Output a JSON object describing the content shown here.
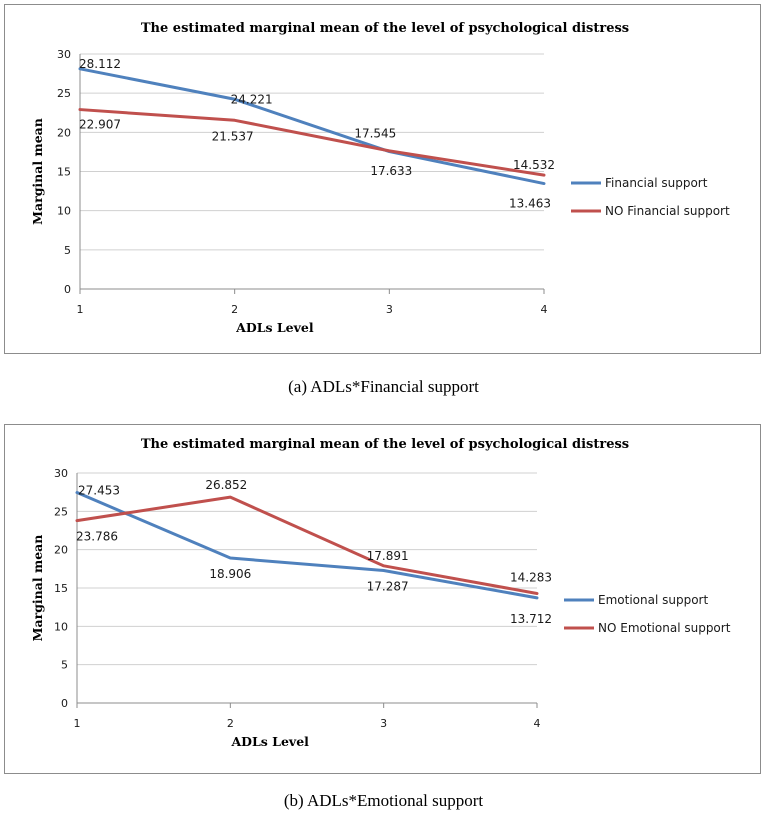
{
  "chart_data": [
    {
      "type": "line",
      "title": "The estimated marginal mean of the level of psychological distress",
      "xlabel": "ADLs  Level",
      "ylabel": "Marginal mean",
      "categories": [
        "1",
        "2",
        "3",
        "4"
      ],
      "ylim": [
        0,
        30
      ],
      "yticks": [
        "0",
        "5",
        "10",
        "15",
        "20",
        "25",
        "30"
      ],
      "grid": true,
      "legend": "right",
      "caption": "(a)  ADLs*Financial support",
      "series": [
        {
          "name": "Financial support",
          "color": "#4f81bd",
          "values": [
            28.112,
            24.221,
            17.545,
            13.463
          ],
          "labels": [
            "28.112",
            "24.221",
            "17.545",
            "13.463"
          ]
        },
        {
          "name": "NO Financial support",
          "color": "#c0504d",
          "values": [
            22.907,
            21.537,
            17.633,
            14.532
          ],
          "labels": [
            "22.907",
            "21.537",
            "17.633",
            "14.532"
          ]
        }
      ]
    },
    {
      "type": "line",
      "title": "The estimated marginal mean of the level of psychological distress",
      "xlabel": "ADLs  Level",
      "ylabel": "Marginal mean",
      "categories": [
        "1",
        "2",
        "3",
        "4"
      ],
      "ylim": [
        0,
        30
      ],
      "yticks": [
        "0",
        "5",
        "10",
        "15",
        "20",
        "25",
        "30"
      ],
      "grid": true,
      "legend": "right",
      "caption": "(b)  ADLs*Emotional support",
      "series": [
        {
          "name": "Emotional support",
          "color": "#4f81bd",
          "values": [
            27.453,
            18.906,
            17.287,
            13.712
          ],
          "labels": [
            "27.453",
            "18.906",
            "17.287",
            "13.712"
          ]
        },
        {
          "name": "NO Emotional support",
          "color": "#c0504d",
          "values": [
            23.786,
            26.852,
            17.891,
            14.283
          ],
          "labels": [
            "23.786",
            "26.852",
            "17.891",
            "14.283"
          ]
        }
      ]
    }
  ]
}
